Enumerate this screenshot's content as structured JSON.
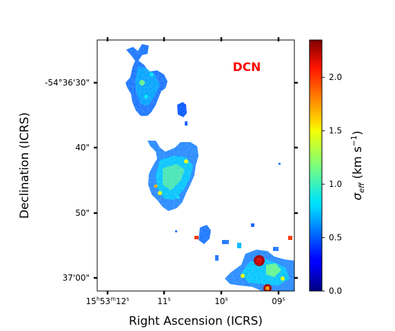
{
  "chart_data": {
    "type": "heatmap",
    "title": "",
    "annotation": "DCN",
    "annotation_color": "#ff0000",
    "xlabel": "Right Ascension (ICRS)",
    "ylabel": "Declination (ICRS)",
    "x_ticks": [
      {
        "h": "15",
        "m": "53",
        "s": "12",
        "label": "15h53m12s"
      },
      {
        "s": "11",
        "label": "11s"
      },
      {
        "s": "10",
        "label": "10s"
      },
      {
        "s": "09",
        "label": "09s"
      }
    ],
    "y_ticks": [
      "-54°36'30\"",
      "40\"",
      "50\"",
      "37'00\""
    ],
    "colorbar": {
      "label_symbol": "σ",
      "label_subscript": "eff",
      "label_units": " (km s",
      "label_exp": "−1",
      "label_close": ")",
      "range": [
        0.0,
        2.35
      ],
      "ticks": [
        "0.0",
        "0.5",
        "1.0",
        "1.5",
        "2.0"
      ],
      "tick_values": [
        0.0,
        0.5,
        1.0,
        1.5,
        2.0
      ],
      "colormap": "jet"
    },
    "grid": false
  }
}
